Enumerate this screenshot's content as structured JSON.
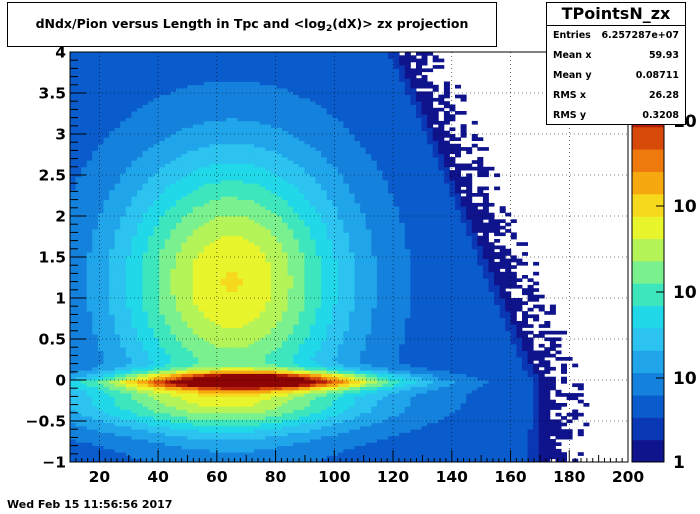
{
  "title": {
    "prefix": "dNdx/Pion versus Length in Tpc and <log",
    "subscript": "2",
    "suffix": "(dX)> zx projection"
  },
  "stats": {
    "name": "TPointsN_zx",
    "rows": [
      {
        "label": "Entries",
        "value": "6.257287e+07"
      },
      {
        "label": "Mean x",
        "value": "59.93"
      },
      {
        "label": "Mean y",
        "value": "0.08711"
      },
      {
        "label": "RMS x",
        "value": "26.28"
      },
      {
        "label": "RMS y",
        "value": "0.3208"
      }
    ]
  },
  "timestamp": "Wed Feb 15 11:56:56 2017",
  "colors": {
    "palette": [
      "#10148c",
      "#0a37b4",
      "#0a5ccc",
      "#1482dc",
      "#20a5ea",
      "#2cc3f0",
      "#20d8e8",
      "#3ee6be",
      "#7af08e",
      "#b4f458",
      "#e8f42c",
      "#f6d81c",
      "#f6a810",
      "#ee7a0e",
      "#d84a0a",
      "#b41e06",
      "#8c0404"
    ]
  },
  "chart_data": {
    "type": "heatmap",
    "title": "dNdx/Pion versus Length in Tpc and <log2(dX)> zx projection",
    "xlabel": "",
    "ylabel": "",
    "xlim": [
      10,
      200
    ],
    "ylim": [
      -1,
      4
    ],
    "x_ticks": [
      "20",
      "40",
      "60",
      "80",
      "100",
      "120",
      "140",
      "160",
      "180",
      "200"
    ],
    "y_ticks": [
      "−1",
      "−0.5",
      "0",
      "0.5",
      "1",
      "1.5",
      "2",
      "2.5",
      "3",
      "3.5",
      "4"
    ],
    "z_scale": "log",
    "z_tick_labels": [
      "1",
      "10",
      "10",
      "10",
      "10"
    ],
    "grid": true,
    "peak": {
      "x": 72,
      "y": 0.0
    },
    "entries": 62572870,
    "mean_x": 59.93,
    "mean_y": 0.08711,
    "rms_x": 26.28,
    "rms_y": 0.3208
  }
}
